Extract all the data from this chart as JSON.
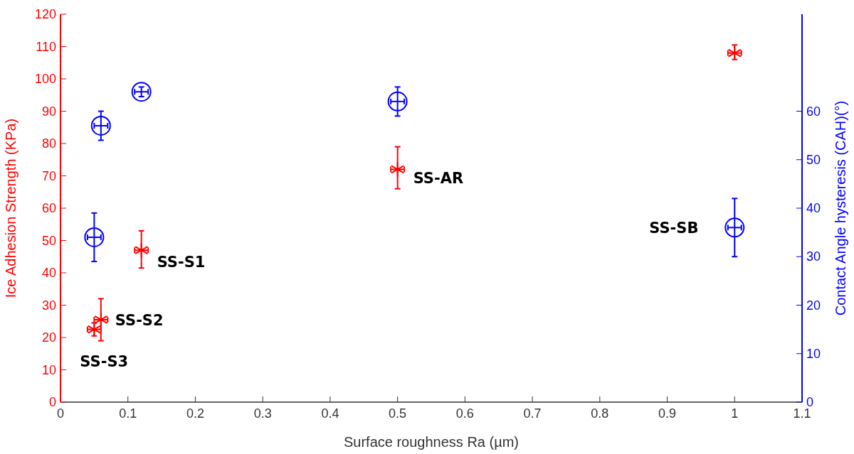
{
  "chart_data": {
    "type": "scatter",
    "xlabel": "Surface roughness Ra (µm)",
    "ylabel": "Ice Adhesion Strength (KPa)",
    "y2label": "Contact Angle hysteresis (CAH)(°)",
    "xlim": [
      0,
      1.1
    ],
    "xticks": [
      0,
      0.1,
      0.2,
      0.3,
      0.4,
      0.5,
      0.6,
      0.7,
      0.8,
      0.9,
      1,
      1.1
    ],
    "ylim": [
      0,
      120
    ],
    "yticks": [
      0,
      10,
      20,
      30,
      40,
      50,
      60,
      70,
      80,
      90,
      100,
      110,
      120
    ],
    "y2lim": [
      0,
      80
    ],
    "y2ticks": [
      0,
      10,
      20,
      30,
      40,
      50,
      60
    ],
    "grid": false,
    "series": [
      {
        "color": "#ff0000",
        "marker": "cross",
        "x": [
          0.05,
          0.06,
          0.12,
          0.5,
          1.0
        ],
        "values": [
          22.5,
          25.5,
          47,
          72,
          108
        ],
        "errors": [
          [
            20.5,
            24.5
          ],
          [
            19,
            32
          ],
          [
            41.5,
            53
          ],
          [
            66,
            79
          ],
          [
            106,
            110.5
          ]
        ],
        "xerrors": [
          0.01,
          0.01,
          0.01,
          0.01,
          0.01
        ]
      },
      {
        "color": "#0000ff",
        "marker": "circle",
        "axis": "y2",
        "x": [
          0.05,
          0.06,
          0.12,
          0.5,
          1.0
        ],
        "values": [
          34,
          57,
          64,
          62,
          36
        ],
        "errors": [
          [
            29,
            39
          ],
          [
            54,
            60
          ],
          [
            63,
            65
          ],
          [
            59,
            65
          ],
          [
            30,
            42
          ]
        ],
        "xerrors": [
          0.01,
          0.01,
          0.01,
          0.01,
          0.01
        ]
      }
    ],
    "annotations": [
      {
        "text": "SS-S1",
        "x": 0.12,
        "y": 47
      },
      {
        "text": "SS-S2",
        "x": 0.06,
        "y": 25.5
      },
      {
        "text": "SS-S3",
        "x": 0.05,
        "y": 22.5
      },
      {
        "text": "SS-AR",
        "x": 0.5,
        "y": 72
      },
      {
        "text": "SS-SB",
        "x": 1.0,
        "y": 54
      }
    ]
  }
}
